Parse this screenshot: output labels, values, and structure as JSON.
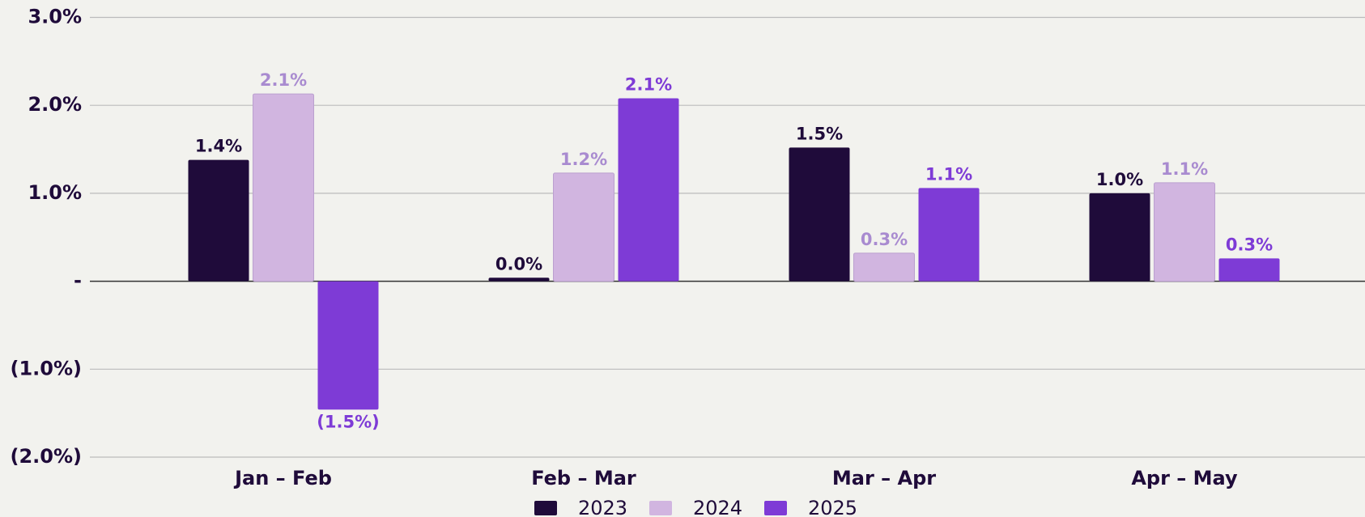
{
  "chart_data": {
    "type": "bar",
    "categories": [
      "Jan – Feb",
      "Feb – Mar",
      "Mar – Apr",
      "Apr – May"
    ],
    "series": [
      {
        "name": "2023",
        "color": "#1f0b3a",
        "values": [
          1.38,
          0.04,
          1.52,
          1.0
        ],
        "value_labels": [
          "1.4%",
          "0.0%",
          "1.5%",
          "1.0%"
        ]
      },
      {
        "name": "2024",
        "color": "#d1b5e0",
        "values": [
          2.13,
          1.23,
          0.32,
          1.12
        ],
        "value_labels": [
          "2.1%",
          "1.2%",
          "0.3%",
          "1.1%"
        ]
      },
      {
        "name": "2025",
        "color": "#7e3bd6",
        "values": [
          -1.46,
          2.08,
          1.06,
          0.26
        ],
        "value_labels": [
          "(1.5%)",
          "2.1%",
          "1.1%",
          "0.3%"
        ]
      }
    ],
    "ylim": [
      -2,
      3
    ],
    "yticks": [
      {
        "value": 3,
        "label": "3.0%"
      },
      {
        "value": 2,
        "label": "2.0%"
      },
      {
        "value": 1,
        "label": "1.0%"
      },
      {
        "value": 0,
        "label": "-"
      },
      {
        "value": -1,
        "label": "(1.0%)"
      },
      {
        "value": -2,
        "label": "(2.0%)"
      }
    ],
    "grid": true,
    "legend": "bottom"
  }
}
